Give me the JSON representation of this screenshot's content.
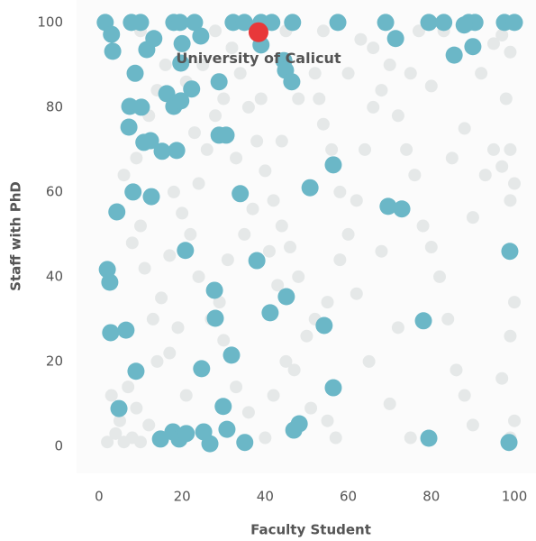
{
  "chart_data": {
    "type": "scatter",
    "x_label": "Faculty Student",
    "y_label": "Staff with PhD",
    "xlim": [
      -5.4,
      105.2
    ],
    "ylim": [
      -6.4,
      105.3
    ],
    "xticks": [
      0,
      20,
      40,
      60,
      80,
      100
    ],
    "yticks": [
      0,
      20,
      40,
      60,
      80,
      100
    ],
    "series": [
      {
        "color": "#e5e8e8",
        "radius": 7,
        "x": [
          2,
          4,
          6,
          8,
          10,
          5,
          3,
          7,
          9,
          12,
          14,
          13,
          17,
          15,
          11,
          8,
          10,
          6,
          9,
          12,
          14,
          16,
          10,
          18,
          20,
          22,
          24,
          26,
          28,
          30,
          25,
          32,
          34,
          36,
          38,
          40,
          42,
          44,
          46,
          48,
          24,
          27,
          30,
          33,
          36,
          40,
          42,
          45,
          47,
          50,
          52,
          55,
          58,
          60,
          62,
          64,
          66,
          68,
          70,
          72,
          74,
          76,
          78,
          80,
          82,
          84,
          86,
          88,
          90,
          75,
          70,
          65,
          62,
          68,
          72,
          80,
          85,
          88,
          92,
          95,
          97,
          99,
          98,
          99,
          97,
          100,
          99,
          100,
          99,
          97,
          100,
          99,
          93,
          95,
          90,
          44,
          48,
          52,
          54,
          56,
          58,
          35,
          31,
          29,
          21,
          19,
          17,
          23,
          33,
          37,
          41,
          43,
          51,
          55,
          57,
          63,
          77,
          83,
          54,
          45,
          28,
          21,
          39,
          47,
          53,
          60,
          66,
          75
        ],
        "values": [
          1,
          3,
          1,
          2,
          1,
          6,
          12,
          14,
          9,
          5,
          20,
          30,
          22,
          35,
          42,
          48,
          52,
          64,
          68,
          78,
          84,
          90,
          98,
          60,
          55,
          50,
          62,
          70,
          78,
          82,
          90,
          94,
          88,
          80,
          72,
          65,
          58,
          52,
          47,
          40,
          40,
          30,
          25,
          14,
          8,
          2,
          12,
          20,
          18,
          26,
          30,
          34,
          44,
          50,
          58,
          70,
          80,
          84,
          90,
          78,
          70,
          64,
          52,
          47,
          40,
          30,
          18,
          12,
          5,
          2,
          10,
          20,
          36,
          46,
          28,
          85,
          68,
          75,
          88,
          95,
          97,
          93,
          82,
          70,
          66,
          62,
          58,
          34,
          26,
          16,
          6,
          2,
          64,
          70,
          54,
          72,
          82,
          88,
          76,
          70,
          60,
          50,
          44,
          34,
          12,
          28,
          45,
          74,
          68,
          56,
          46,
          38,
          9,
          6,
          2,
          96,
          98,
          98,
          98,
          98,
          98,
          86,
          82,
          86,
          82,
          88,
          94,
          88
        ]
      },
      {
        "color": "#6bb7c7",
        "radius": 9.5,
        "x": [
          1.5,
          7.8,
          10,
          18,
          19.5,
          23,
          32.3,
          35,
          39,
          41.6,
          46.6,
          57.5,
          69,
          79.4,
          83,
          89,
          90.5,
          97.6,
          100,
          3,
          3.3,
          11.5,
          13.2,
          20,
          19.7,
          24.5,
          39,
          44.5,
          44.9,
          46.4,
          71.4,
          85.5,
          90,
          87.9,
          8.7,
          16.3,
          22.3,
          28.9,
          7.4,
          10.2,
          18,
          19.7,
          7.2,
          10.8,
          12.4,
          15.2,
          18.7,
          28.9,
          30.6,
          8.2,
          12.6,
          4.3,
          34,
          50.8,
          56.4,
          69.6,
          72.9,
          20.8,
          38,
          98.9,
          2,
          2.6,
          27.8,
          45.1,
          41.2,
          28,
          54.2,
          78.1,
          2.8,
          6.5,
          31.9,
          8.9,
          24.7,
          56.4,
          4.8,
          29.9,
          14.8,
          17.8,
          19.3,
          21,
          25.2,
          26.7,
          30.8,
          35.1,
          46.9,
          48.2,
          79.4,
          98.7
        ],
        "values": [
          100,
          100,
          100,
          100,
          100,
          100,
          100,
          100,
          100,
          100,
          100,
          100,
          100,
          100,
          100,
          100,
          100,
          100,
          100,
          97.2,
          93.2,
          93.6,
          96.2,
          95,
          90.4,
          96.8,
          94.7,
          91,
          88.7,
          86,
          96.2,
          92.3,
          94.3,
          99.4,
          88,
          83.2,
          84.3,
          86,
          80.2,
          80,
          80.2,
          81.5,
          75.3,
          71.7,
          72.1,
          69.6,
          69.8,
          73.4,
          73.4,
          60,
          58.9,
          55.3,
          59.6,
          61,
          66.4,
          56.6,
          56,
          46.2,
          43.8,
          46,
          41.7,
          38.7,
          36.8,
          35.3,
          31.5,
          30.2,
          28.5,
          29.6,
          26.8,
          27.4,
          21.5,
          17.7,
          18.3,
          13.8,
          8.9,
          9.4,
          1.7,
          3.4,
          1.7,
          3,
          3.4,
          0.6,
          4,
          0.9,
          3.8,
          5.3,
          1.9,
          0.9
        ]
      },
      {
        "color": "#e8383a",
        "radius": 11,
        "x": [
          38.4
        ],
        "values": [
          97.7
        ]
      }
    ],
    "annotations": [
      {
        "text": "University of Calicut"
      }
    ]
  }
}
